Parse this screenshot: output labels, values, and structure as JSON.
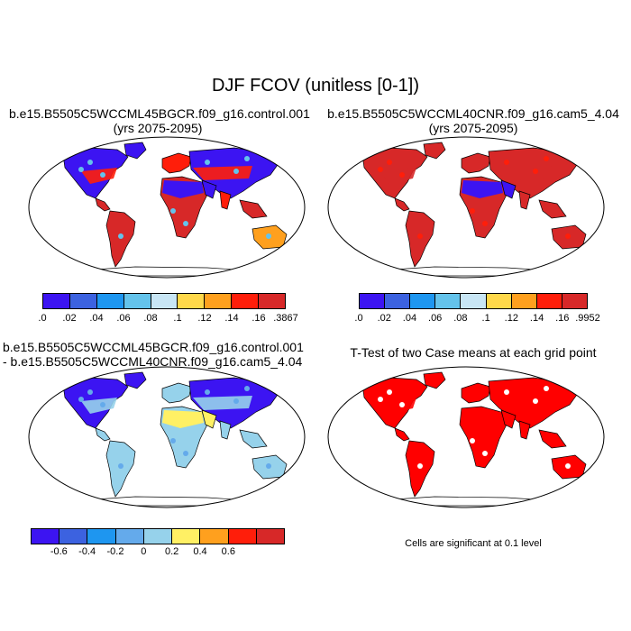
{
  "figure_title": "DJF FCOV (unitless [0-1])",
  "panels": {
    "top_left": {
      "title_line1": "b.e15.B5505C5WCCML45BGCR.f09_g16.control.001",
      "title_line2": "(yrs 2075-2095)"
    },
    "top_right": {
      "title_line1": "b.e15.B5505C5WCCML40CNR.f09_g16.cam5_4.04",
      "title_line2": "(yrs 2075-2095)"
    },
    "bottom_left": {
      "title_line1": "b.e15.B5505C5WCCML45BGCR.f09_g16.control.001",
      "title_line2": "- b.e15.B5505C5WCCML40CNR.f09_g16.cam5_4.04"
    },
    "bottom_right": {
      "title_line1": "T-Test of two Case means at each grid point",
      "note": "Cells are significant at 0.1 level"
    }
  },
  "colorbars": {
    "abs_left": {
      "colors": [
        "#3c14f2",
        "#3c62e0",
        "#1e96f0",
        "#64c3eb",
        "#c8e6f5",
        "#ffd84a",
        "#ffa01e",
        "#ff1e0a",
        "#d72828"
      ],
      "labels": [
        ".0",
        ".02",
        ".04",
        ".06",
        ".08",
        ".1",
        ".12",
        ".14",
        ".16",
        ".3867"
      ]
    },
    "abs_right": {
      "colors": [
        "#3c14f2",
        "#3c62e0",
        "#1e96f0",
        "#64c3eb",
        "#c8e6f5",
        "#ffd84a",
        "#ffa01e",
        "#ff1e0a",
        "#d72828"
      ],
      "labels": [
        ".0",
        ".02",
        ".04",
        ".06",
        ".08",
        ".1",
        ".12",
        ".14",
        ".16",
        ".9952"
      ]
    },
    "diff": {
      "colors": [
        "#3c14f2",
        "#3c62e0",
        "#1e96f0",
        "#64aaeb",
        "#96d2eb",
        "#fff064",
        "#ffa01e",
        "#ff1e0a",
        "#d72828"
      ],
      "labels": [
        "-0.6",
        "-0.4",
        "-0.2",
        "0",
        "0.2",
        "0.4",
        "0.6"
      ]
    }
  },
  "map_fills": {
    "tl": {
      "north": "#3c14f2",
      "mid": "#ff1e0a",
      "tropic": "#d72828",
      "desert": "#3c14f2",
      "south": "#ffa01e",
      "accent": "#64c3eb"
    },
    "tr": {
      "north": "#d72828",
      "mid": "#d72828",
      "tropic": "#d72828",
      "desert": "#3c14f2",
      "south": "#d72828",
      "accent": "#ff1e0a"
    },
    "bl": {
      "north": "#3c14f2",
      "mid": "#96d2eb",
      "tropic": "#96d2eb",
      "desert": "#fff064",
      "south": "#96d2eb",
      "accent": "#64aaeb"
    },
    "br": {
      "north": "#ff0000",
      "mid": "#ff0000",
      "tropic": "#ff0000",
      "desert": "#ff0000",
      "south": "#ff0000",
      "accent": "#ffffff"
    }
  }
}
